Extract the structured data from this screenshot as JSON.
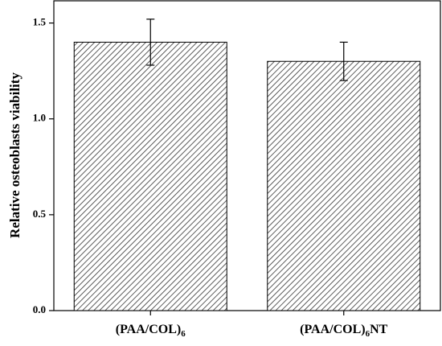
{
  "chart_data": {
    "type": "bar",
    "categories": [
      "(PAA/COL)6",
      "(PAA/COL)6NT"
    ],
    "values": [
      1.4,
      1.3
    ],
    "errors": [
      0.12,
      0.1
    ],
    "color": "#333333",
    "y_label": "Relative osteoblasts viability",
    "ylim": [
      0,
      1.62
    ],
    "yticks": [
      {
        "value": 0,
        "label": "0.0"
      },
      {
        "value": 0.5,
        "label": "0.5"
      },
      {
        "value": 1,
        "label": "1.0"
      },
      {
        "value": 1.5,
        "label": "1.5"
      }
    ],
    "hatch": true
  }
}
